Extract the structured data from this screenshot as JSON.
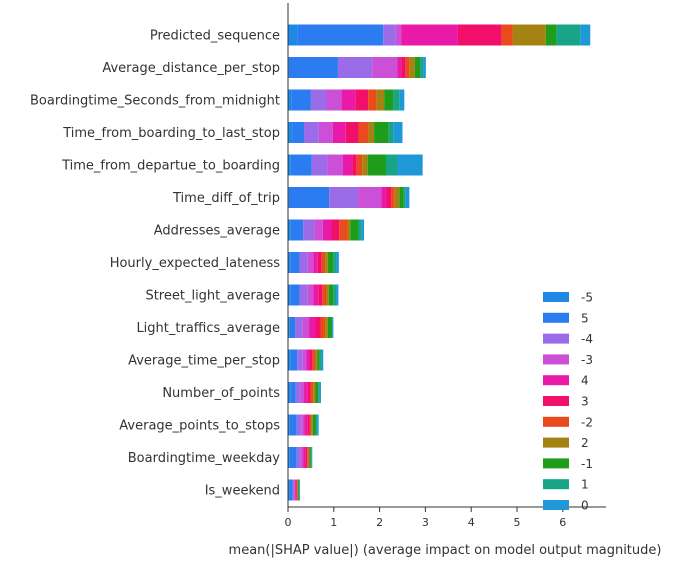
{
  "chart_data": {
    "type": "bar",
    "orientation": "horizontal",
    "stacked": true,
    "title": "",
    "xlabel": "mean(|SHAP value|) (average impact on model output magnitude)",
    "ylabel": "",
    "xlim": [
      0,
      6.8
    ],
    "xticks": [
      0,
      1,
      2,
      3,
      4,
      5,
      6
    ],
    "grid": false,
    "legend_position": "bottom-right",
    "categories": [
      "Predicted_sequence",
      "Average_distance_per_stop",
      "Boardingtime_Seconds_from_midnight",
      "Time_from_boarding_to_last_stop",
      "Time_from_departue_to_boarding",
      "Time_diff_of_trip",
      "Addresses_average",
      "Hourly_expected_lateness",
      "Street_light_average",
      "Light_traffics_average",
      "Average_time_per_stop",
      "Number_of_points",
      "Average_points_to_stops",
      "Boardingtime_weekday",
      "Is_weekend"
    ],
    "series": [
      {
        "name": "-5",
        "color": "#1e88e5",
        "values": [
          0.2,
          0.02,
          0.08,
          0.1,
          0.06,
          0.02,
          0.05,
          0.05,
          0.05,
          0.04,
          0.05,
          0.05,
          0.04,
          0.04,
          0.03
        ]
      },
      {
        "name": "5",
        "color": "#2a7cf0",
        "values": [
          1.88,
          1.07,
          0.42,
          0.25,
          0.46,
          0.88,
          0.28,
          0.2,
          0.2,
          0.12,
          0.15,
          0.12,
          0.15,
          0.15,
          0.07
        ]
      },
      {
        "name": "-4",
        "color": "#9a6ce8",
        "values": [
          0.27,
          0.75,
          0.34,
          0.32,
          0.34,
          0.63,
          0.24,
          0.17,
          0.17,
          0.16,
          0.12,
          0.1,
          0.1,
          0.08,
          0.03
        ]
      },
      {
        "name": "-3",
        "color": "#cc4fd8",
        "values": [
          0.12,
          0.55,
          0.33,
          0.31,
          0.34,
          0.51,
          0.19,
          0.13,
          0.13,
          0.14,
          0.08,
          0.08,
          0.07,
          0.06,
          0.02
        ]
      },
      {
        "name": "4",
        "color": "#ea1aa8",
        "values": [
          1.24,
          0.08,
          0.3,
          0.28,
          0.2,
          0.11,
          0.19,
          0.1,
          0.11,
          0.14,
          0.08,
          0.08,
          0.06,
          0.05,
          0.02
        ]
      },
      {
        "name": "3",
        "color": "#f20f69",
        "values": [
          0.95,
          0.1,
          0.28,
          0.28,
          0.1,
          0.1,
          0.17,
          0.08,
          0.09,
          0.11,
          0.06,
          0.06,
          0.05,
          0.04,
          0.02
        ]
      },
      {
        "name": "-2",
        "color": "#ea4b1c",
        "values": [
          0.25,
          0.08,
          0.18,
          0.22,
          0.12,
          0.08,
          0.18,
          0.08,
          0.08,
          0.1,
          0.05,
          0.06,
          0.04,
          0.03,
          0.02
        ]
      },
      {
        "name": "2",
        "color": "#a48312",
        "values": [
          0.72,
          0.12,
          0.17,
          0.12,
          0.12,
          0.1,
          0.06,
          0.06,
          0.06,
          0.06,
          0.05,
          0.05,
          0.03,
          0.02,
          0.01
        ]
      },
      {
        "name": "-1",
        "color": "#1f9c1a",
        "values": [
          0.23,
          0.12,
          0.2,
          0.32,
          0.4,
          0.1,
          0.18,
          0.12,
          0.1,
          0.08,
          0.05,
          0.06,
          0.07,
          0.03,
          0.02
        ]
      },
      {
        "name": "1",
        "color": "#17a487",
        "values": [
          0.52,
          0.06,
          0.14,
          0.1,
          0.25,
          0.04,
          0.06,
          0.06,
          0.06,
          0.02,
          0.04,
          0.03,
          0.03,
          0.02,
          0.01
        ]
      },
      {
        "name": "0",
        "color": "#1e98d7",
        "values": [
          0.22,
          0.06,
          0.1,
          0.2,
          0.55,
          0.08,
          0.06,
          0.06,
          0.05,
          0.02,
          0.04,
          0.03,
          0.03,
          0.01,
          0.01
        ]
      }
    ]
  }
}
